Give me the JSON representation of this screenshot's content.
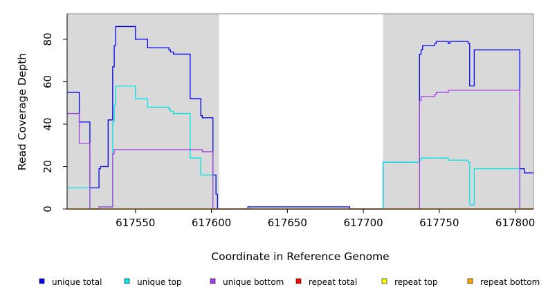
{
  "chart_data": {
    "type": "line",
    "title": "",
    "xlabel": "Coordinate in Reference Genome",
    "ylabel": "Read Coverage Depth",
    "xlim": [
      617505,
      617812
    ],
    "ylim": [
      0,
      92
    ],
    "xticks": [
      617550,
      617600,
      617650,
      617700,
      617750,
      617800
    ],
    "yticks": [
      0,
      20,
      40,
      60,
      80
    ],
    "grid": false,
    "legend_placement": "bottom",
    "shaded_regions": [
      {
        "x0": 617505,
        "x1": 617605,
        "color": "#d9d9d9"
      },
      {
        "x0": 617713,
        "x1": 617812,
        "color": "#d9d9d9"
      }
    ],
    "series": [
      {
        "name": "unique total",
        "color": "#0000ee",
        "points": [
          [
            617505,
            55
          ],
          [
            617513,
            55
          ],
          [
            617513,
            41
          ],
          [
            617520,
            41
          ],
          [
            617520,
            10
          ],
          [
            617526,
            10
          ],
          [
            617526,
            19
          ],
          [
            617527,
            19
          ],
          [
            617527,
            20
          ],
          [
            617532,
            20
          ],
          [
            617532,
            42
          ],
          [
            617535,
            42
          ],
          [
            617535,
            67
          ],
          [
            617536,
            67
          ],
          [
            617536,
            77
          ],
          [
            617537,
            77
          ],
          [
            617537,
            86
          ],
          [
            617550,
            86
          ],
          [
            617550,
            80
          ],
          [
            617558,
            80
          ],
          [
            617558,
            76
          ],
          [
            617572,
            76
          ],
          [
            617572,
            75
          ],
          [
            617573,
            75
          ],
          [
            617573,
            74
          ],
          [
            617575,
            74
          ],
          [
            617575,
            73
          ],
          [
            617586,
            73
          ],
          [
            617586,
            52
          ],
          [
            617593,
            52
          ],
          [
            617593,
            44
          ],
          [
            617594,
            44
          ],
          [
            617594,
            43
          ],
          [
            617601,
            43
          ],
          [
            617601,
            16
          ],
          [
            617603,
            16
          ],
          [
            617603,
            7
          ],
          [
            617604,
            7
          ],
          [
            617604,
            0
          ],
          [
            617624,
            0
          ],
          [
            617624,
            1
          ],
          [
            617691,
            1
          ],
          [
            617691,
            0
          ],
          [
            617713,
            0
          ],
          [
            617713,
            22
          ],
          [
            617737,
            22
          ],
          [
            617737,
            73
          ],
          [
            617738,
            73
          ],
          [
            617738,
            75
          ],
          [
            617739,
            75
          ],
          [
            617739,
            77
          ],
          [
            617747,
            77
          ],
          [
            617747,
            78
          ],
          [
            617748,
            78
          ],
          [
            617748,
            79
          ],
          [
            617756,
            79
          ],
          [
            617756,
            78
          ],
          [
            617757,
            78
          ],
          [
            617757,
            79
          ],
          [
            617769,
            79
          ],
          [
            617769,
            78
          ],
          [
            617770,
            78
          ],
          [
            617770,
            58
          ],
          [
            617773,
            58
          ],
          [
            617773,
            75
          ],
          [
            617803,
            75
          ],
          [
            617803,
            19
          ],
          [
            617806,
            19
          ],
          [
            617806,
            17
          ],
          [
            617812,
            17
          ]
        ]
      },
      {
        "name": "unique top",
        "color": "#00e5e5",
        "points": [
          [
            617505,
            10
          ],
          [
            617520,
            10
          ],
          [
            617520,
            0
          ],
          [
            617526,
            0
          ],
          [
            617526,
            1
          ],
          [
            617535,
            1
          ],
          [
            617535,
            41
          ],
          [
            617536,
            41
          ],
          [
            617536,
            49
          ],
          [
            617537,
            49
          ],
          [
            617537,
            58
          ],
          [
            617550,
            58
          ],
          [
            617550,
            52
          ],
          [
            617558,
            52
          ],
          [
            617558,
            48
          ],
          [
            617572,
            48
          ],
          [
            617572,
            47
          ],
          [
            617573,
            47
          ],
          [
            617573,
            46
          ],
          [
            617575,
            46
          ],
          [
            617575,
            45
          ],
          [
            617586,
            45
          ],
          [
            617586,
            24
          ],
          [
            617593,
            24
          ],
          [
            617593,
            16
          ],
          [
            617601,
            16
          ],
          [
            617601,
            0
          ],
          [
            617713,
            0
          ],
          [
            617713,
            22
          ],
          [
            617737,
            22
          ],
          [
            617737,
            23
          ],
          [
            617738,
            23
          ],
          [
            617738,
            24
          ],
          [
            617756,
            24
          ],
          [
            617756,
            23
          ],
          [
            617769,
            23
          ],
          [
            617769,
            22
          ],
          [
            617770,
            22
          ],
          [
            617770,
            2
          ],
          [
            617773,
            2
          ],
          [
            617773,
            19
          ],
          [
            617803,
            19
          ],
          [
            617803,
            0
          ],
          [
            617812,
            0
          ]
        ]
      },
      {
        "name": "unique bottom",
        "color": "#a040e0",
        "points": [
          [
            617505,
            45
          ],
          [
            617513,
            45
          ],
          [
            617513,
            31
          ],
          [
            617520,
            31
          ],
          [
            617520,
            0
          ],
          [
            617526,
            0
          ],
          [
            617526,
            1
          ],
          [
            617535,
            1
          ],
          [
            617535,
            26
          ],
          [
            617536,
            26
          ],
          [
            617536,
            28
          ],
          [
            617594,
            28
          ],
          [
            617594,
            27
          ],
          [
            617601,
            27
          ],
          [
            617601,
            0
          ],
          [
            617737,
            0
          ],
          [
            617737,
            51
          ],
          [
            617738,
            51
          ],
          [
            617738,
            53
          ],
          [
            617747,
            53
          ],
          [
            617747,
            54
          ],
          [
            617748,
            54
          ],
          [
            617748,
            55
          ],
          [
            617756,
            55
          ],
          [
            617756,
            56
          ],
          [
            617803,
            56
          ],
          [
            617803,
            0
          ],
          [
            617812,
            0
          ]
        ]
      },
      {
        "name": "repeat total",
        "color": "#ff0000",
        "points": [
          [
            617505,
            0
          ],
          [
            617812,
            0
          ]
        ]
      },
      {
        "name": "repeat top",
        "color": "#ffff00",
        "points": [
          [
            617505,
            0
          ],
          [
            617812,
            0
          ]
        ]
      },
      {
        "name": "repeat bottom",
        "color": "#ffa500",
        "points": [
          [
            617505,
            0
          ],
          [
            617812,
            0
          ]
        ]
      }
    ]
  }
}
